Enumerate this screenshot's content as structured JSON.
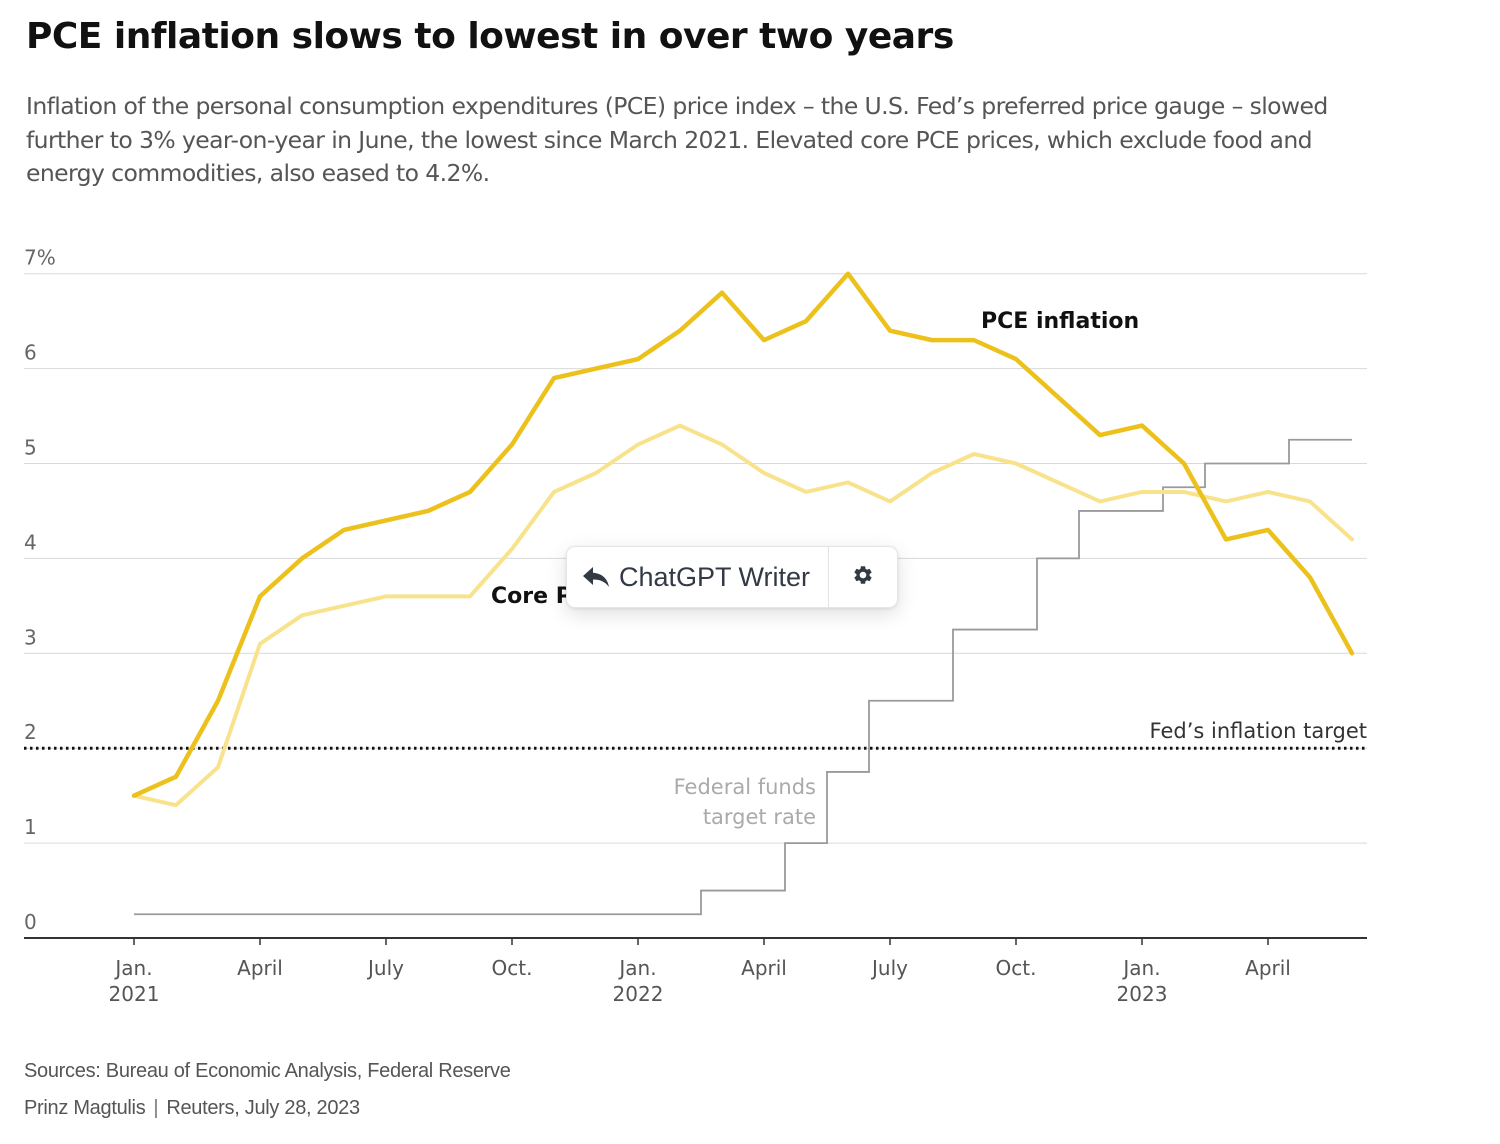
{
  "title": "PCE inflation slows to lowest in over two years",
  "subtitle": "Inflation of the personal consumption expenditures (PCE) price index – the U.S. Fed’s preferred price gauge – slowed further to 3% year-on-year in June, the lowest since March 2021. Elevated core PCE prices, which exclude food and energy commodities, also eased to 4.2%.",
  "sources": "Sources: Bureau of Economic Analysis, Federal Reserve",
  "credit": {
    "author": "Prinz Magtulis",
    "separator": "|",
    "outlet": "Reuters, July 28, 2023"
  },
  "writer_popup": {
    "label": "ChatGPT Writer",
    "reply_icon": "reply-arrow-icon",
    "settings_icon": "gear-icon"
  },
  "colors": {
    "pce": "#ECC11C",
    "core": "#F8E38C",
    "fed_funds": "#9a9a9a",
    "grid": "#d9d9d9",
    "axis": "#333333",
    "target": "#111111"
  },
  "chart_data": {
    "type": "line",
    "title": "PCE inflation slows to lowest in over two years",
    "ylim": [
      0,
      7
    ],
    "y_ticks": [
      {
        "value": 7,
        "label": "7%"
      },
      {
        "value": 6,
        "label": "6"
      },
      {
        "value": 5,
        "label": "5"
      },
      {
        "value": 4,
        "label": "4"
      },
      {
        "value": 3,
        "label": "3"
      },
      {
        "value": 2,
        "label": "2"
      },
      {
        "value": 1,
        "label": "1"
      },
      {
        "value": 0,
        "label": "0"
      }
    ],
    "x_ticks": [
      {
        "index": 0,
        "label": "Jan.",
        "year": "2021"
      },
      {
        "index": 3,
        "label": "April",
        "year": ""
      },
      {
        "index": 6,
        "label": "July",
        "year": ""
      },
      {
        "index": 9,
        "label": "Oct.",
        "year": ""
      },
      {
        "index": 12,
        "label": "Jan.",
        "year": "2022"
      },
      {
        "index": 15,
        "label": "April",
        "year": ""
      },
      {
        "index": 18,
        "label": "July",
        "year": ""
      },
      {
        "index": 21,
        "label": "Oct.",
        "year": ""
      },
      {
        "index": 24,
        "label": "Jan.",
        "year": "2023"
      },
      {
        "index": 27,
        "label": "April",
        "year": ""
      }
    ],
    "months": [
      "2021-01",
      "2021-02",
      "2021-03",
      "2021-04",
      "2021-05",
      "2021-06",
      "2021-07",
      "2021-08",
      "2021-09",
      "2021-10",
      "2021-11",
      "2021-12",
      "2022-01",
      "2022-02",
      "2022-03",
      "2022-04",
      "2022-05",
      "2022-06",
      "2022-07",
      "2022-08",
      "2022-09",
      "2022-10",
      "2022-11",
      "2022-12",
      "2023-01",
      "2023-02",
      "2023-03",
      "2023-04",
      "2023-05",
      "2023-06"
    ],
    "series": [
      {
        "name": "PCE inflation",
        "label": "PCE inflation",
        "values": [
          1.5,
          1.7,
          2.5,
          3.6,
          4.0,
          4.3,
          4.4,
          4.5,
          4.7,
          5.2,
          5.9,
          6.0,
          6.1,
          6.4,
          6.8,
          6.3,
          6.5,
          7.0,
          6.4,
          6.3,
          6.3,
          6.1,
          5.7,
          5.3,
          5.4,
          5.0,
          4.2,
          4.3,
          3.8,
          3.0
        ]
      },
      {
        "name": "Core PCE",
        "label": "Core PCE",
        "values": [
          1.5,
          1.4,
          1.8,
          3.1,
          3.4,
          3.5,
          3.6,
          3.6,
          3.6,
          4.1,
          4.7,
          4.9,
          5.2,
          5.4,
          5.2,
          4.9,
          4.7,
          4.8,
          4.6,
          4.9,
          5.1,
          5.0,
          4.8,
          4.6,
          4.7,
          4.7,
          4.6,
          4.7,
          4.6,
          4.2
        ]
      },
      {
        "name": "Federal funds target rate",
        "label_lines": [
          "Federal funds",
          "target rate"
        ],
        "step_x": [
          0,
          13.5,
          15.5,
          16.5,
          17.5,
          19.5,
          21.5,
          22.5,
          24.5,
          25.5,
          27.5,
          29
        ],
        "step_values": [
          0.25,
          0.5,
          1.0,
          1.75,
          2.5,
          3.25,
          4.0,
          4.5,
          4.75,
          5.0,
          5.25,
          5.25
        ]
      }
    ],
    "reference_line": {
      "value": 2.0,
      "label": "Fed’s inflation target",
      "style": "dotted"
    }
  }
}
